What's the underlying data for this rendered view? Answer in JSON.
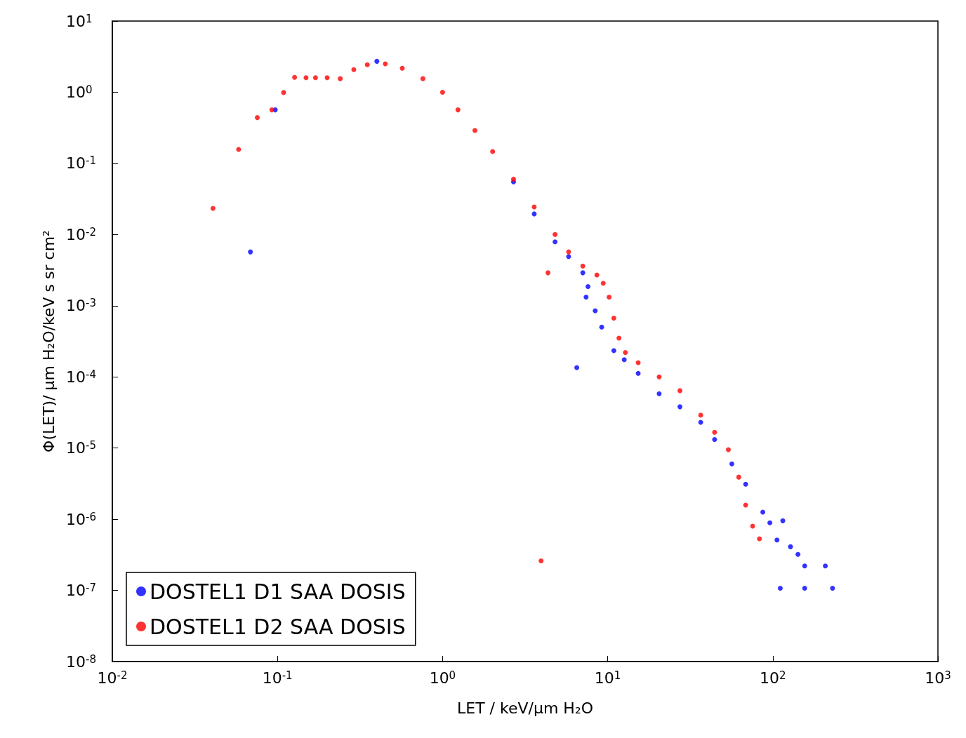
{
  "chart_data": {
    "type": "scatter",
    "xlabel": "LET / keV/μm H₂O",
    "ylabel": "Φ(LET)/ μm H₂O/keV s sr cm²",
    "log": "xy",
    "grid": false,
    "legend": "bottom left",
    "marker": "circle",
    "xlim": [
      0.01,
      1000
    ],
    "ylim": [
      1e-08,
      10
    ],
    "xticks": [
      {
        "value": 0.01,
        "label": "10$^{-2}$"
      },
      {
        "value": 0.1,
        "label": "10$^{-1}$"
      },
      {
        "value": 1,
        "label": "10$^{0}$"
      },
      {
        "value": 10,
        "label": "10$^{1}$"
      },
      {
        "value": 100,
        "label": "10$^{2}$"
      },
      {
        "value": 1000,
        "label": "10$^{3}$"
      }
    ],
    "yticks": [
      {
        "value": 1e-08,
        "label": "10$^{-8}$"
      },
      {
        "value": 1e-07,
        "label": "10$^{-7}$"
      },
      {
        "value": 1e-06,
        "label": "10$^{-6}$"
      },
      {
        "value": 1e-05,
        "label": "10$^{-5}$"
      },
      {
        "value": 0.0001,
        "label": "10$^{-4}$"
      },
      {
        "value": 0.001,
        "label": "10$^{-3}$"
      },
      {
        "value": 0.01,
        "label": "10$^{-2}$"
      },
      {
        "value": 0.1,
        "label": "10$^{-1}$"
      },
      {
        "value": 1,
        "label": "10$^{0}$"
      },
      {
        "value": 10,
        "label": "10$^{1}$"
      }
    ],
    "series": [
      {
        "name": "DOSTEL1 D1 SAA DOSIS",
        "color": "#0000ff",
        "x": [
          0.0686,
          0.097,
          0.4,
          2.69,
          3.59,
          4.8,
          5.8,
          7.07,
          7.6,
          7.4,
          6.5,
          8.4,
          9.2,
          10.9,
          12.6,
          15.3,
          20.5,
          27.4,
          36.6,
          44.4,
          56.5,
          68.5,
          87,
          96,
          115,
          106,
          128,
          142,
          111,
          156,
          208,
          230,
          156
        ],
        "values": [
          0.0057,
          0.565,
          2.72,
          0.055,
          0.0195,
          0.0079,
          0.0049,
          0.0029,
          0.00186,
          0.00132,
          0.000135,
          0.00085,
          0.0005,
          0.000234,
          0.000174,
          0.000112,
          5.8e-05,
          3.8e-05,
          2.3e-05,
          1.32e-05,
          6e-06,
          3.1e-06,
          1.26e-06,
          8.9e-07,
          9.5e-07,
          5.1e-07,
          4.1e-07,
          3.2e-07,
          1.07e-07,
          2.2e-07,
          2.2e-07,
          1.07e-07,
          1.07e-07
        ]
      },
      {
        "name": "DOSTEL1 D2 SAA DOSIS",
        "color": "#ff0000",
        "x": [
          0.0407,
          0.0582,
          0.0755,
          0.0925,
          0.109,
          0.127,
          0.149,
          0.17,
          0.2,
          0.24,
          0.29,
          0.35,
          0.45,
          0.57,
          0.76,
          1.0,
          1.24,
          1.57,
          2.01,
          2.69,
          3.59,
          4.8,
          5.8,
          7.07,
          8.6,
          9.4,
          10.2,
          10.9,
          11.7,
          12.8,
          15.3,
          20.5,
          27.4,
          36.6,
          44.4,
          53.8,
          62.2,
          68.5,
          75.5,
          83,
          4.35,
          3.95
        ],
        "values": [
          0.0233,
          0.157,
          0.44,
          0.565,
          0.99,
          1.62,
          1.6,
          1.6,
          1.6,
          1.55,
          2.08,
          2.43,
          2.5,
          2.17,
          1.55,
          1.0,
          0.565,
          0.29,
          0.147,
          0.06,
          0.0244,
          0.01,
          0.0057,
          0.0036,
          0.0027,
          0.00207,
          0.00132,
          0.00067,
          0.00035,
          0.00022,
          0.000158,
          0.0001,
          6.4e-05,
          2.9e-05,
          1.66e-05,
          9.5e-06,
          3.9e-06,
          1.58e-06,
          8e-07,
          5.3e-07,
          0.0029,
          2.6e-07
        ]
      }
    ]
  }
}
